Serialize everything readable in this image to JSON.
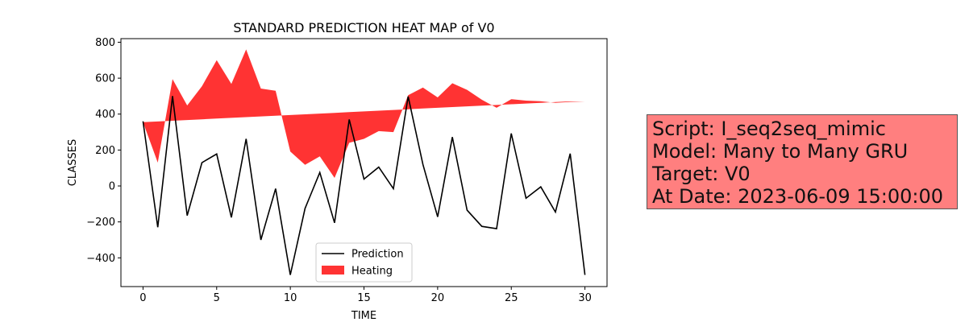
{
  "chart_data": {
    "type": "line",
    "title": "STANDARD PREDICTION HEAT MAP of V0",
    "xlabel": "TIME",
    "ylabel": "CLASSES",
    "xlim": [
      -1.5,
      31.5
    ],
    "ylim": [
      -560,
      820
    ],
    "xticks": [
      0,
      5,
      10,
      15,
      20,
      25,
      30
    ],
    "yticks": [
      -400,
      -200,
      0,
      200,
      400,
      600,
      800
    ],
    "grid": false,
    "legend_position": "lower-center",
    "x": [
      0,
      1,
      2,
      3,
      4,
      5,
      6,
      7,
      8,
      9,
      10,
      11,
      12,
      13,
      14,
      15,
      16,
      17,
      18,
      19,
      20,
      21,
      22,
      23,
      24,
      25,
      26,
      27,
      28,
      29,
      30
    ],
    "series": [
      {
        "name": "Prediction",
        "type": "line",
        "color": "#000000",
        "values": [
          360,
          -230,
          500,
          -165,
          130,
          178,
          -175,
          262,
          -300,
          -15,
          -495,
          -125,
          75,
          -205,
          370,
          38,
          105,
          -15,
          498,
          120,
          -172,
          272,
          -135,
          -225,
          -238,
          292,
          -68,
          -5,
          -145,
          180,
          -495
        ]
      },
      {
        "name": "Heating",
        "type": "area",
        "color": "#ff0000",
        "baseline": [
          355,
          359,
          363,
          367,
          371,
          375,
          379,
          383,
          387,
          391,
          395,
          399,
          403,
          407,
          411,
          415,
          419,
          423,
          427,
          431,
          435,
          439,
          443,
          447,
          451,
          455,
          459,
          463,
          467,
          471,
          470
        ],
        "values": [
          355,
          130,
          595,
          448,
          555,
          700,
          568,
          760,
          542,
          530,
          192,
          118,
          165,
          45,
          240,
          262,
          305,
          300,
          505,
          548,
          493,
          572,
          535,
          480,
          435,
          483,
          475,
          472,
          463,
          468,
          470
        ]
      }
    ]
  },
  "info_box": {
    "background": "#ff7f7f",
    "lines": [
      "Script: I_seq2seq_mimic",
      "Model: Many to Many GRU",
      "Target: V0",
      "At Date: 2023-06-09 15:00:00"
    ]
  }
}
